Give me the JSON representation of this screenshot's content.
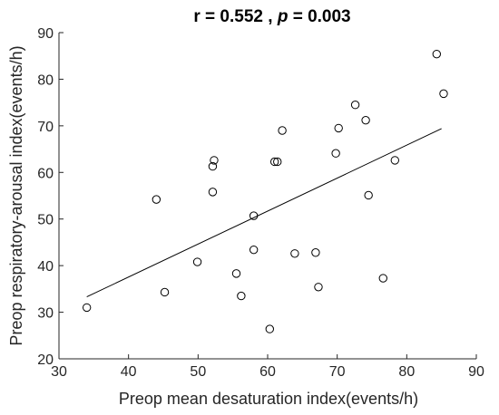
{
  "title": {
    "r_part": "r = 0.552 ,  ",
    "p_symbol": "p",
    "p_part": " = 0.003"
  },
  "chart_data": {
    "type": "scatter",
    "title": "r = 0.552 ,  p = 0.003",
    "xlabel": "Preop mean desaturation index(events/h)",
    "ylabel": "Preop respiratory-arousal index(events/h)",
    "xlim": [
      30,
      90
    ],
    "ylim": [
      20,
      90
    ],
    "xticks": [
      30,
      40,
      50,
      60,
      70,
      80,
      90
    ],
    "yticks": [
      20,
      30,
      40,
      50,
      60,
      70,
      80,
      90
    ],
    "grid": false,
    "points": [
      {
        "x": 34.0,
        "y": 31.0
      },
      {
        "x": 44.0,
        "y": 54.2
      },
      {
        "x": 45.2,
        "y": 34.3
      },
      {
        "x": 49.9,
        "y": 40.8
      },
      {
        "x": 52.1,
        "y": 61.3
      },
      {
        "x": 52.3,
        "y": 62.6
      },
      {
        "x": 52.1,
        "y": 55.8
      },
      {
        "x": 55.5,
        "y": 38.3
      },
      {
        "x": 56.2,
        "y": 33.5
      },
      {
        "x": 58.0,
        "y": 50.7
      },
      {
        "x": 58.0,
        "y": 43.4
      },
      {
        "x": 60.3,
        "y": 26.4
      },
      {
        "x": 61.0,
        "y": 62.3
      },
      {
        "x": 61.4,
        "y": 62.3
      },
      {
        "x": 62.1,
        "y": 69.0
      },
      {
        "x": 63.9,
        "y": 42.6
      },
      {
        "x": 66.9,
        "y": 42.8
      },
      {
        "x": 67.3,
        "y": 35.4
      },
      {
        "x": 69.8,
        "y": 64.1
      },
      {
        "x": 70.2,
        "y": 69.5
      },
      {
        "x": 72.6,
        "y": 74.5
      },
      {
        "x": 74.1,
        "y": 71.2
      },
      {
        "x": 74.5,
        "y": 55.1
      },
      {
        "x": 76.6,
        "y": 37.3
      },
      {
        "x": 78.3,
        "y": 62.6
      },
      {
        "x": 84.3,
        "y": 85.4
      },
      {
        "x": 85.3,
        "y": 76.9
      }
    ],
    "fit_line": {
      "x": [
        34.0,
        85.0
      ],
      "y": [
        33.3,
        69.4
      ]
    }
  }
}
